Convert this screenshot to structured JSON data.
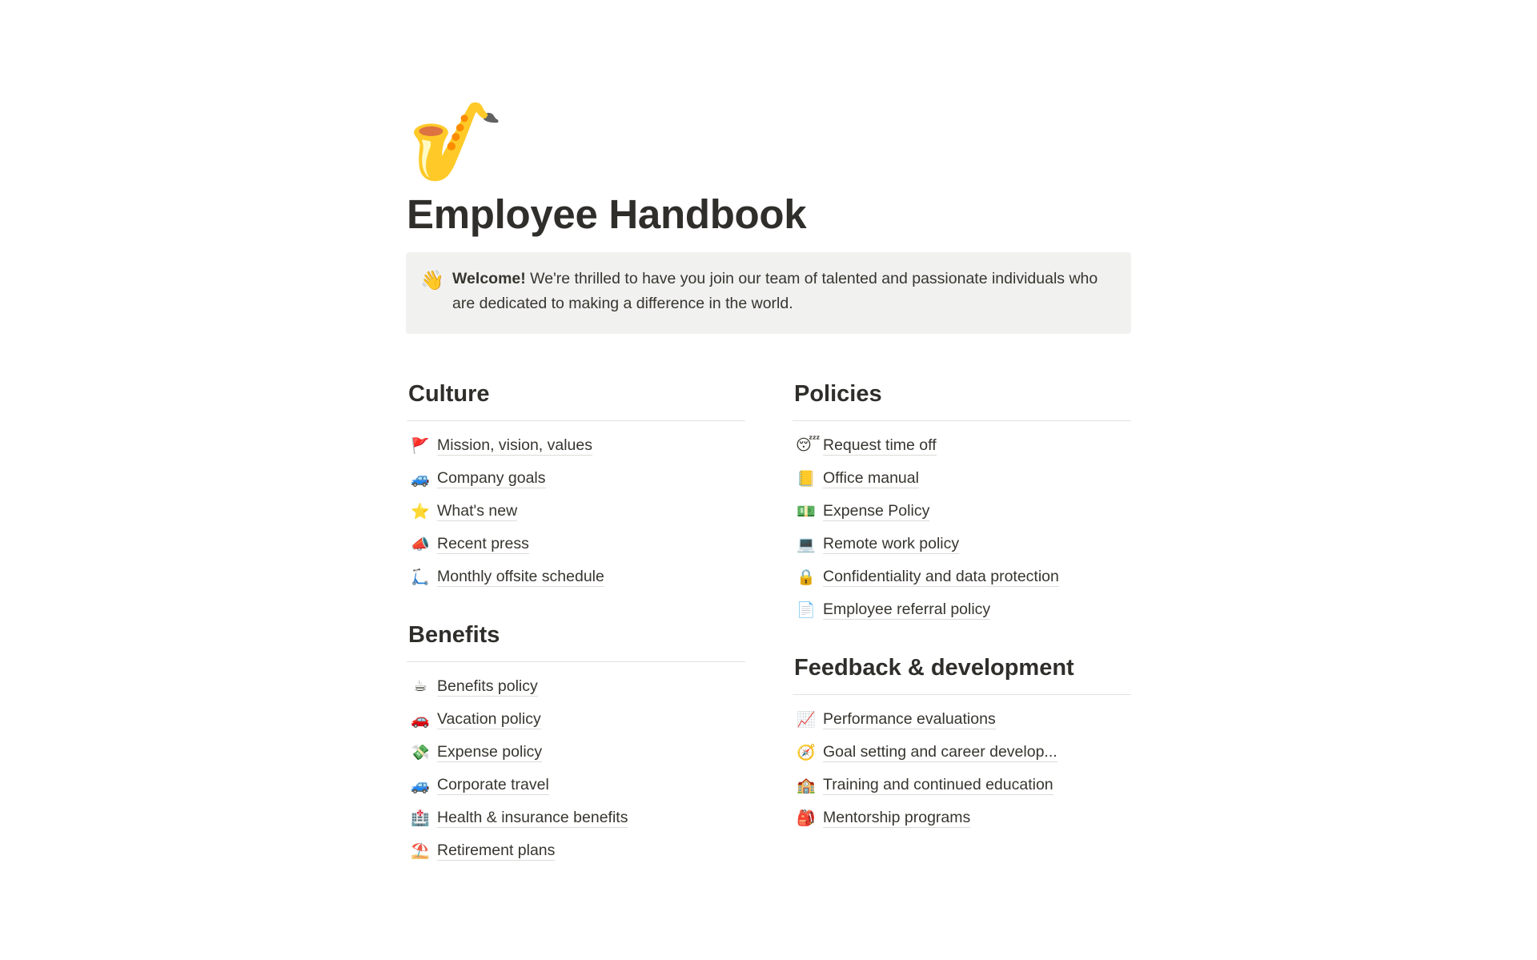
{
  "page": {
    "icon": "🎷",
    "title": "Employee Handbook",
    "callout": {
      "icon": "👋",
      "bold": "Welcome!",
      "text": " We're thrilled to have you join our team of talented and passionate individuals who are dedicated to making a difference in the world."
    }
  },
  "left_column": [
    {
      "heading": "Culture",
      "items": [
        {
          "icon": "🚩",
          "label": "Mission, vision, values"
        },
        {
          "icon": "🚙",
          "label": "Company goals"
        },
        {
          "icon": "⭐",
          "label": "What's new"
        },
        {
          "icon": "📣",
          "label": "Recent press"
        },
        {
          "icon": "🛴",
          "label": "Monthly offsite schedule"
        }
      ]
    },
    {
      "heading": "Benefits",
      "items": [
        {
          "icon": "☕",
          "label": "Benefits policy"
        },
        {
          "icon": "🚗",
          "label": "Vacation policy"
        },
        {
          "icon": "💸",
          "label": "Expense policy"
        },
        {
          "icon": "🚙",
          "label": "Corporate travel"
        },
        {
          "icon": "🏥",
          "label": "Health & insurance benefits"
        },
        {
          "icon": "⛱️",
          "label": "Retirement plans"
        }
      ]
    }
  ],
  "right_column": [
    {
      "heading": "Policies",
      "items": [
        {
          "icon": "😴",
          "label": "Request time off"
        },
        {
          "icon": "📒",
          "label": "Office manual"
        },
        {
          "icon": "💵",
          "label": "Expense Policy"
        },
        {
          "icon": "💻",
          "label": "Remote work policy"
        },
        {
          "icon": "🔒",
          "label": "Confidentiality and data protection"
        },
        {
          "icon": "📄",
          "label": "Employee referral policy"
        }
      ]
    },
    {
      "heading": "Feedback & development",
      "items": [
        {
          "icon": "📈",
          "label": "Performance evaluations"
        },
        {
          "icon": "🧭",
          "label": "Goal setting and career develop..."
        },
        {
          "icon": "🏫",
          "label": "Training and continued education"
        },
        {
          "icon": "🎒",
          "label": "Mentorship programs"
        }
      ]
    }
  ]
}
